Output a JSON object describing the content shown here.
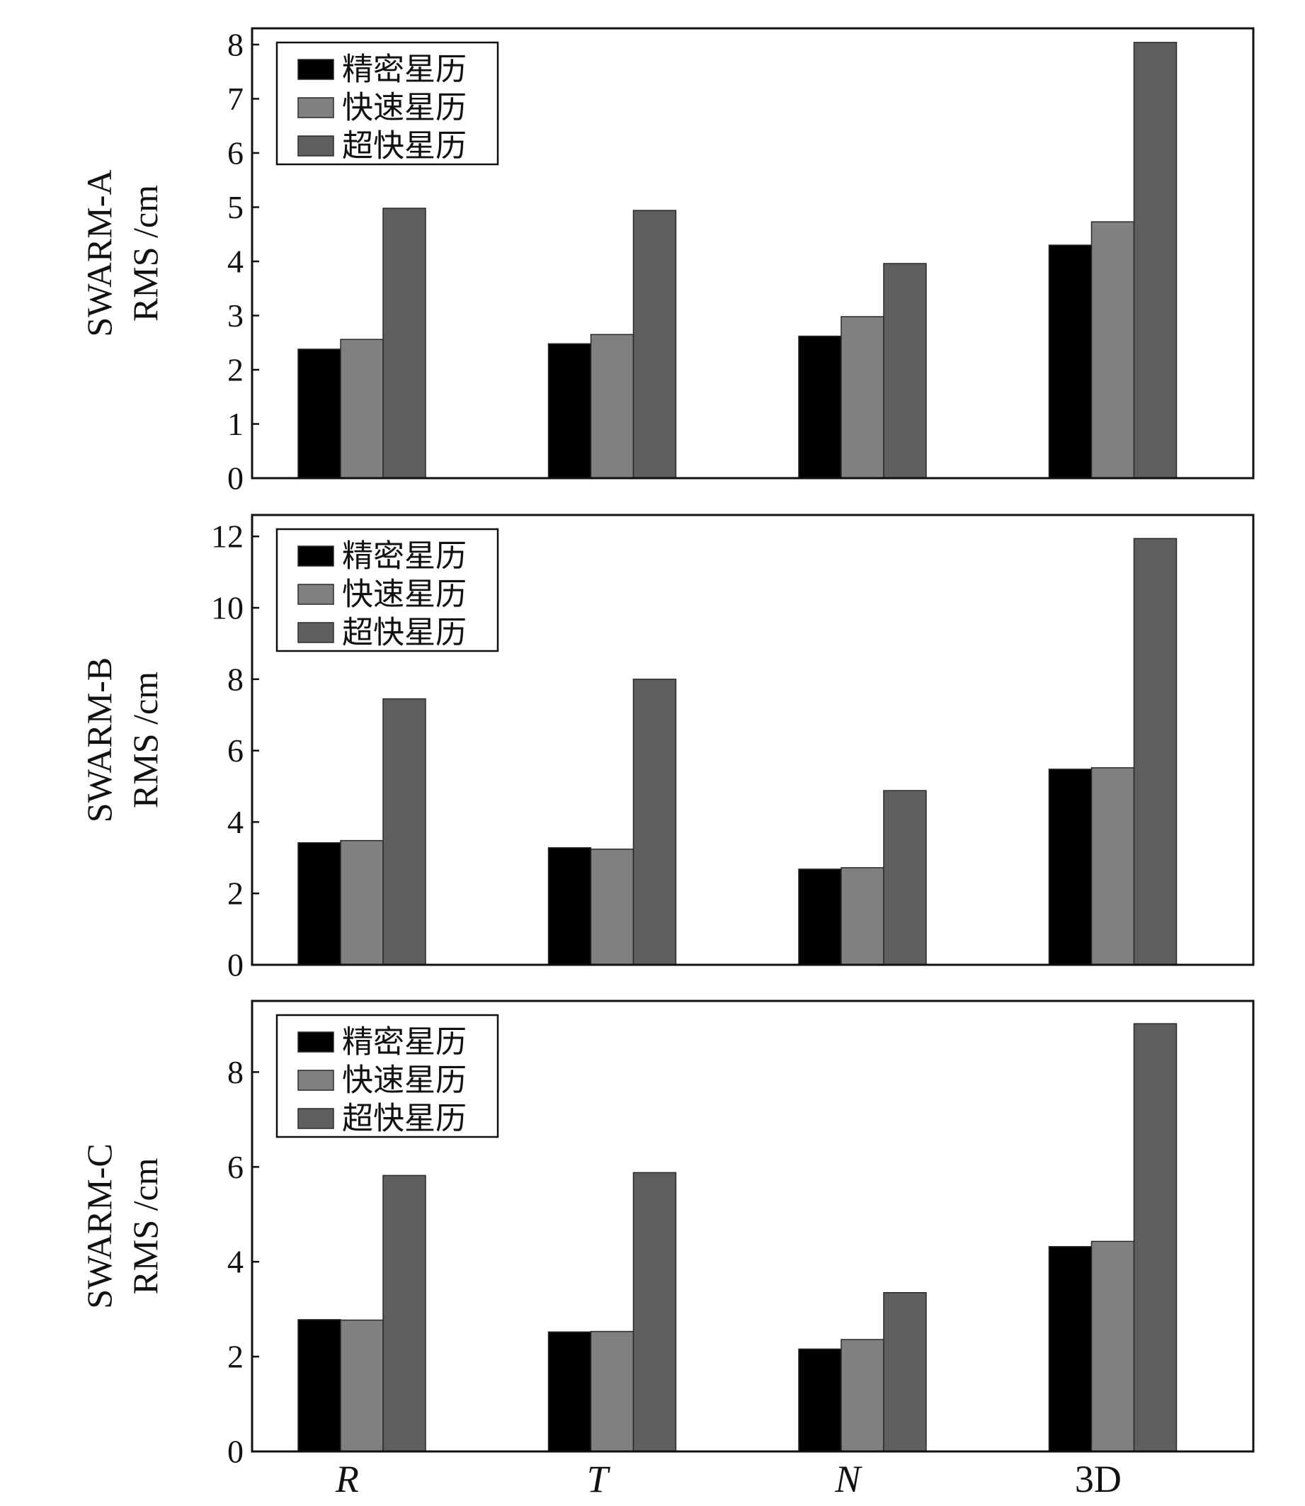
{
  "chart_data": [
    {
      "type": "bar",
      "panel": "SWARM-A",
      "ylabel_lines": [
        "SWARM-A",
        "RMS /cm"
      ],
      "categories": [
        "R",
        "T",
        "N",
        "3D"
      ],
      "ylim": [
        0,
        8.3
      ],
      "yticks": [
        0,
        1,
        2,
        3,
        4,
        5,
        6,
        7,
        8
      ],
      "legend": "top-left",
      "grid": false,
      "series": [
        {
          "name": "精密星历",
          "color": "#000000",
          "values": [
            2.38,
            2.48,
            2.62,
            4.3
          ]
        },
        {
          "name": "快速星历",
          "color": "#808080",
          "values": [
            2.56,
            2.65,
            2.98,
            4.73
          ]
        },
        {
          "name": "超快星历",
          "color": "#5e5e5e",
          "values": [
            4.98,
            4.94,
            3.96,
            8.04
          ]
        }
      ]
    },
    {
      "type": "bar",
      "panel": "SWARM-B",
      "ylabel_lines": [
        "SWARM-B",
        "RMS /cm"
      ],
      "categories": [
        "R",
        "T",
        "N",
        "3D"
      ],
      "ylim": [
        0,
        12.6
      ],
      "yticks": [
        0,
        2,
        4,
        6,
        8,
        10,
        12
      ],
      "legend": "top-left",
      "grid": false,
      "series": [
        {
          "name": "精密星历",
          "color": "#000000",
          "values": [
            3.42,
            3.28,
            2.68,
            5.48
          ]
        },
        {
          "name": "快速星历",
          "color": "#808080",
          "values": [
            3.48,
            3.24,
            2.72,
            5.52
          ]
        },
        {
          "name": "超快星历",
          "color": "#5e5e5e",
          "values": [
            7.45,
            8.0,
            4.88,
            11.94
          ]
        }
      ]
    },
    {
      "type": "bar",
      "panel": "SWARM-C",
      "ylabel_lines": [
        "SWARM-C",
        "RMS /cm"
      ],
      "categories": [
        "R",
        "T",
        "N",
        "3D"
      ],
      "ylim": [
        0,
        9.5
      ],
      "yticks": [
        0,
        2,
        4,
        6,
        8
      ],
      "legend": "top-left",
      "grid": false,
      "series": [
        {
          "name": "精密星历",
          "color": "#000000",
          "values": [
            2.78,
            2.52,
            2.16,
            4.32
          ]
        },
        {
          "name": "快速星历",
          "color": "#808080",
          "values": [
            2.77,
            2.53,
            2.36,
            4.43
          ]
        },
        {
          "name": "超快星历",
          "color": "#5e5e5e",
          "values": [
            5.82,
            5.88,
            3.35,
            9.02
          ]
        }
      ]
    }
  ],
  "x_tick_labels": [
    {
      "text": "R",
      "italic": true
    },
    {
      "text": "T",
      "italic": true
    },
    {
      "text": "N",
      "italic": true
    },
    {
      "text": "3D",
      "italic": false
    }
  ]
}
